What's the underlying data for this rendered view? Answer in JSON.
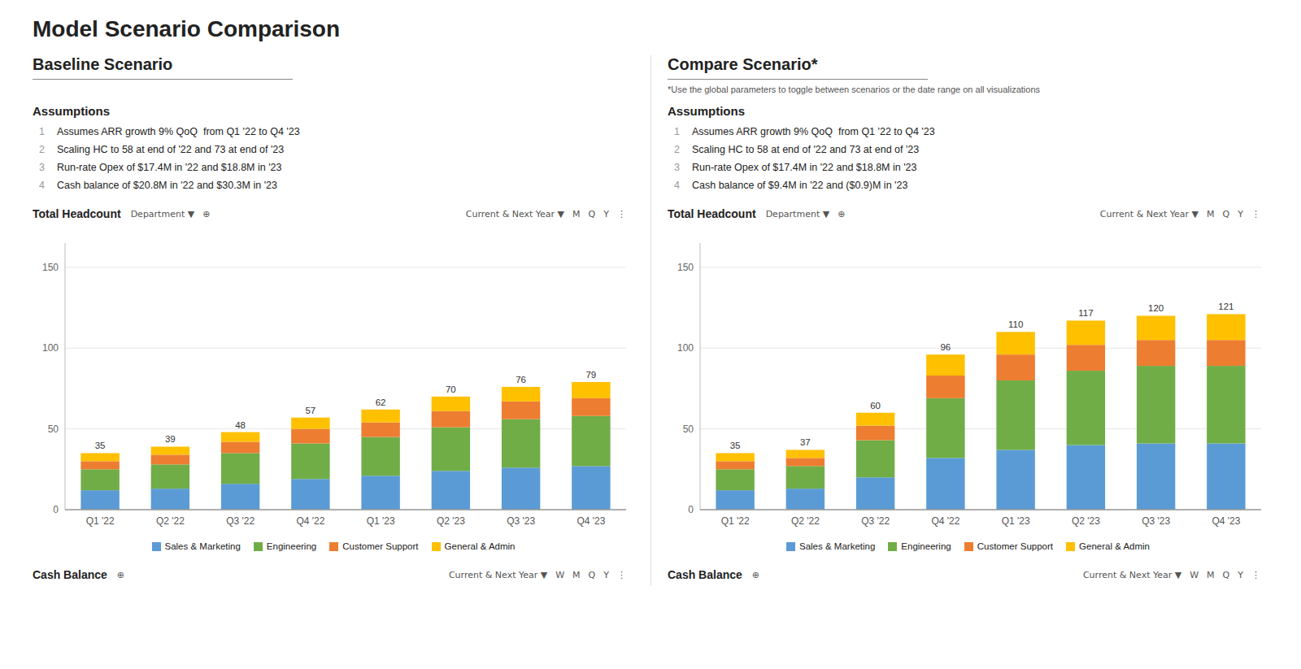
{
  "title": "Model Scenario Comparison",
  "chart_data": [
    {
      "type": "bar",
      "stacked": true,
      "title": "Baseline Scenario",
      "categories": [
        "Q1 '22",
        "Q2 '22",
        "Q3 '22",
        "Q4 '22",
        "Q1 '23",
        "Q2 '23",
        "Q3 '23",
        "Q4 '23"
      ],
      "series": [
        {
          "name": "Sales & Marketing",
          "color": "#5b9bd5",
          "values": [
            12,
            13,
            16,
            19,
            21,
            24,
            26,
            27
          ]
        },
        {
          "name": "Engineering",
          "color": "#70ad47",
          "values": [
            13,
            15,
            19,
            22,
            24,
            27,
            30,
            31
          ]
        },
        {
          "name": "Customer Support",
          "color": "#ed7d31",
          "values": [
            5,
            6,
            7,
            9,
            9,
            10,
            11,
            11
          ]
        },
        {
          "name": "General & Admin",
          "color": "#ffc000",
          "values": [
            5,
            5,
            6,
            7,
            8,
            9,
            9,
            10
          ]
        }
      ],
      "totals": [
        35,
        39,
        48,
        57,
        62,
        70,
        76,
        79
      ],
      "ylim": [
        0,
        165
      ],
      "yticks": [
        0,
        50,
        100,
        150
      ],
      "grid": true,
      "legend": "bottom",
      "annotations": {
        "assumptions_header": "Assumptions",
        "assumptions": [
          {
            "num": "1",
            "text": "Assumes ARR growth 9% QoQ  from Q1 '22 to Q4 '23"
          },
          {
            "num": "2",
            "text": "Scaling HC to 58 at end of '22 and 73 at end of '23"
          },
          {
            "num": "3",
            "text": "Run-rate Opex of $17.4M in '22 and $18.8M in '23"
          },
          {
            "num": "4",
            "text": "Cash balance of $20.8M in '22 and $30.3M in '23"
          }
        ],
        "chart_header": {
          "label": "Total Headcount",
          "left_controls": [
            "Department ▼",
            "⊕"
          ],
          "right_controls": [
            "Current & Next Year ▼",
            "M",
            "Q",
            "Y",
            "⋮"
          ]
        },
        "footer": {
          "label": "Cash Balance",
          "left_controls": [
            "⊕"
          ],
          "right_controls": [
            "Current & Next Year ▼",
            "W",
            "M",
            "Q",
            "Y",
            "⋮"
          ]
        }
      }
    },
    {
      "type": "bar",
      "stacked": true,
      "title": "Compare Scenario*",
      "subtitle": "*Use the global parameters to toggle between scenarios or the date range on all visualizations",
      "categories": [
        "Q1 '22",
        "Q2 '22",
        "Q3 '22",
        "Q4 '22",
        "Q1 '23",
        "Q2 '23",
        "Q3 '23",
        "Q4 '23"
      ],
      "series": [
        {
          "name": "Sales & Marketing",
          "color": "#5b9bd5",
          "values": [
            12,
            13,
            20,
            32,
            37,
            40,
            41,
            41
          ]
        },
        {
          "name": "Engineering",
          "color": "#70ad47",
          "values": [
            13,
            14,
            23,
            37,
            43,
            46,
            48,
            48
          ]
        },
        {
          "name": "Customer Support",
          "color": "#ed7d31",
          "values": [
            5,
            5,
            9,
            14,
            16,
            16,
            16,
            16
          ]
        },
        {
          "name": "General & Admin",
          "color": "#ffc000",
          "values": [
            5,
            5,
            8,
            13,
            14,
            15,
            15,
            16
          ]
        }
      ],
      "totals": [
        35,
        37,
        60,
        96,
        110,
        117,
        120,
        121
      ],
      "ylim": [
        0,
        165
      ],
      "yticks": [
        0,
        50,
        100,
        150
      ],
      "grid": true,
      "legend": "bottom",
      "annotations": {
        "assumptions_header": "Assumptions",
        "assumptions": [
          {
            "num": "1",
            "text": "Assumes ARR growth 9% QoQ  from Q1 '22 to Q4 '23"
          },
          {
            "num": "2",
            "text": "Scaling HC to 58 at end of '22 and 73 at end of '23"
          },
          {
            "num": "3",
            "text": "Run-rate Opex of $17.4M in '22 and $18.8M in '23"
          },
          {
            "num": "4",
            "text": "Cash balance of $9.4M in '22 and ($0.9)M in '23"
          }
        ],
        "chart_header": {
          "label": "Total Headcount",
          "left_controls": [
            "Department ▼",
            "⊕"
          ],
          "right_controls": [
            "Current & Next Year ▼",
            "M",
            "Q",
            "Y",
            "⋮"
          ]
        },
        "footer": {
          "label": "Cash Balance",
          "left_controls": [
            "⊕"
          ],
          "right_controls": [
            "Current & Next Year ▼",
            "W",
            "M",
            "Q",
            "Y",
            "⋮"
          ]
        }
      }
    }
  ]
}
